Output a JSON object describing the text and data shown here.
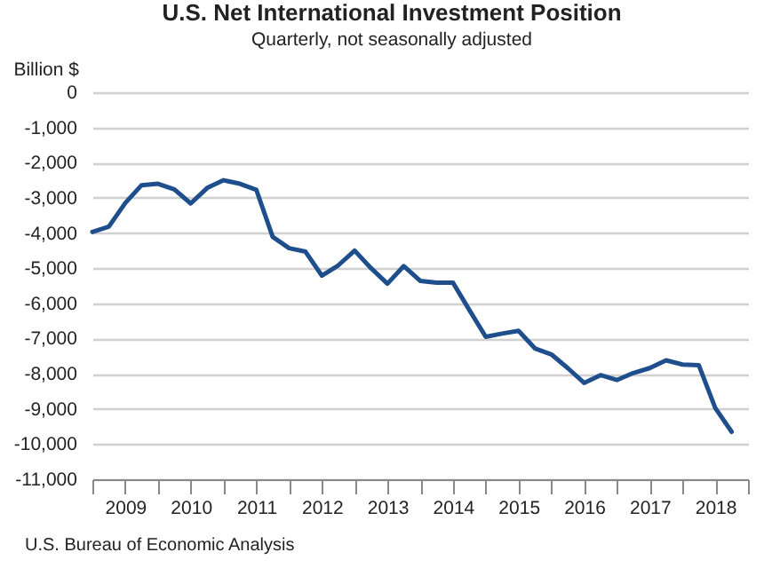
{
  "chart_data": {
    "type": "line",
    "title": "U.S. Net International Investment Position",
    "subtitle": "Quarterly, not seasonally adjusted",
    "ylabel": "Billion $",
    "annotations": [
      "U.S. Bureau of Economic Analysis"
    ],
    "x": [
      2009,
      2009.25,
      2009.5,
      2009.75,
      2010,
      2010.25,
      2010.5,
      2010.75,
      2011,
      2011.25,
      2011.5,
      2011.75,
      2012,
      2012.25,
      2012.5,
      2012.75,
      2013,
      2013.25,
      2013.5,
      2013.75,
      2014,
      2014.25,
      2014.5,
      2014.75,
      2015,
      2015.25,
      2015.5,
      2015.75,
      2016,
      2016.25,
      2016.5,
      2016.75,
      2017,
      2017.25,
      2017.5,
      2017.75,
      2018,
      2018.25,
      2018.5,
      2018.75
    ],
    "series": [
      {
        "color": "#1f4e8c",
        "values": [
          -3970,
          -3820,
          -3150,
          -2640,
          -2600,
          -2760,
          -3160,
          -2720,
          -2500,
          -2600,
          -2770,
          -4110,
          -4430,
          -4530,
          -5210,
          -4920,
          -4500,
          -5000,
          -5440,
          -4940,
          -5360,
          -5410,
          -5410,
          -6190,
          -6950,
          -6860,
          -6780,
          -7280,
          -7450,
          -7840,
          -8260,
          -8040,
          -8180,
          -7980,
          -7840,
          -7620,
          -7740,
          -7760,
          -8970,
          -9650
        ]
      }
    ],
    "xlim": [
      2009,
      2019
    ],
    "xticks": [
      {
        "value": 2009,
        "label": null
      },
      {
        "value": 2009.5,
        "label": "2009"
      },
      {
        "value": 2010,
        "label": null
      },
      {
        "value": 2010.5,
        "label": "2010"
      },
      {
        "value": 2011,
        "label": null
      },
      {
        "value": 2011.5,
        "label": "2011"
      },
      {
        "value": 2012,
        "label": null
      },
      {
        "value": 2012.5,
        "label": "2012"
      },
      {
        "value": 2013,
        "label": null
      },
      {
        "value": 2013.5,
        "label": "2013"
      },
      {
        "value": 2014,
        "label": null
      },
      {
        "value": 2014.5,
        "label": "2014"
      },
      {
        "value": 2015,
        "label": null
      },
      {
        "value": 2015.5,
        "label": "2015"
      },
      {
        "value": 2016,
        "label": null
      },
      {
        "value": 2016.5,
        "label": "2016"
      },
      {
        "value": 2017,
        "label": null
      },
      {
        "value": 2017.5,
        "label": "2017"
      },
      {
        "value": 2018,
        "label": null
      },
      {
        "value": 2018.5,
        "label": "2018"
      },
      {
        "value": 2019,
        "label": null
      }
    ],
    "ylim": [
      -11000,
      0
    ],
    "yticks": [
      0,
      {
        "value": -1000,
        "label": "-1,000"
      },
      {
        "value": -2000,
        "label": "-2,000"
      },
      {
        "value": -3000,
        "label": "-3,000"
      },
      {
        "value": -4000,
        "label": "-4,000"
      },
      {
        "value": -5000,
        "label": "-5,000"
      },
      {
        "value": -6000,
        "label": "-6,000"
      },
      {
        "value": -7000,
        "label": "-7,000"
      },
      {
        "value": -8000,
        "label": "-8,000"
      },
      {
        "value": -9000,
        "label": "-9,000"
      },
      {
        "value": -10000,
        "label": "-10,000"
      },
      {
        "value": -11000,
        "label": "-11,000"
      }
    ],
    "grid": "y",
    "line_style": "solid",
    "marker": "none"
  }
}
